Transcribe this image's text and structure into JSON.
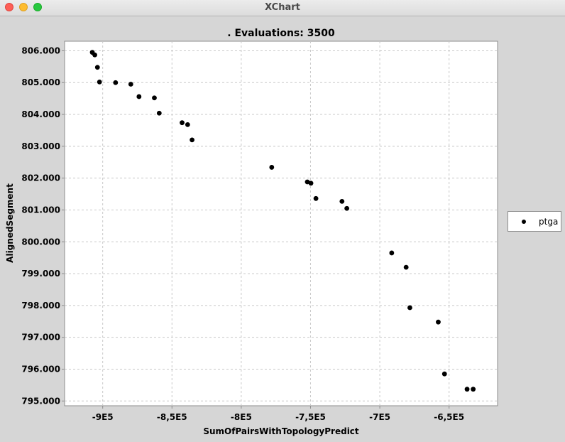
{
  "window": {
    "title": "XChart"
  },
  "chart_data": {
    "type": "scatter",
    "title": ". Evaluations: 3500",
    "xlabel": "SumOfPairsWithTopologyPredict",
    "ylabel": "AlignedSegment",
    "xlim": [
      -927500,
      -615000
    ],
    "ylim": [
      794850,
      806300
    ],
    "x_ticks": [
      -900000,
      -850000,
      -800000,
      -750000,
      -700000,
      -650000
    ],
    "x_tick_labels": [
      "-9E5",
      "-8,5E5",
      "-8E5",
      "-7,5E5",
      "-7E5",
      "-6,5E5"
    ],
    "y_ticks": [
      795000,
      796000,
      797000,
      798000,
      799000,
      800000,
      801000,
      802000,
      803000,
      804000,
      805000,
      806000
    ],
    "y_tick_labels": [
      "795.000",
      "796.000",
      "797.000",
      "798.000",
      "799.000",
      "800.000",
      "801.000",
      "802.000",
      "803.000",
      "804.000",
      "805.000",
      "806.000"
    ],
    "grid": true,
    "legend_position": "right",
    "series": [
      {
        "name": "ptga",
        "color": "#000000",
        "x": [
          -907500,
          -905700,
          -903800,
          -902300,
          -890700,
          -879700,
          -873800,
          -862700,
          -859200,
          -842700,
          -838700,
          -835500,
          -778000,
          -752300,
          -749700,
          -746100,
          -727300,
          -723800,
          -691400,
          -681000,
          -678300,
          -657800,
          -653300,
          -637000,
          -632600
        ],
        "y": [
          805950,
          805870,
          805480,
          805020,
          805000,
          804950,
          804560,
          804520,
          804040,
          803740,
          803680,
          803200,
          802340,
          801880,
          801840,
          801360,
          801270,
          801050,
          799650,
          799200,
          797930,
          797480,
          795850,
          795370,
          795370
        ]
      }
    ]
  }
}
